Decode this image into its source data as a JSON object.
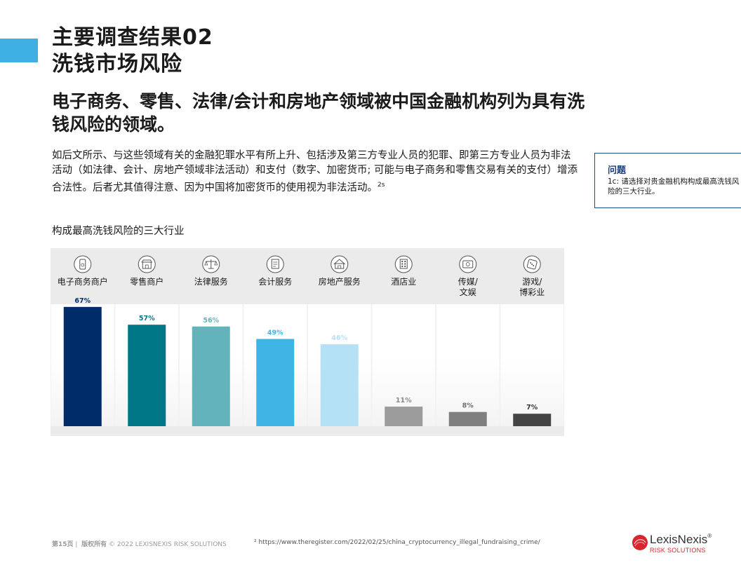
{
  "header": {
    "title_line1": "主要调查结果02",
    "title_line2": "洗钱市场风险",
    "headline": "电子商务、零售、法律/会计和房地产领域被中国金融机构列为具有洗钱风险的领域。"
  },
  "body": {
    "paragraph": "如后文所示、与这些领域有关的金融犯罪水平有所上升、包括涉及第三方专业人员的犯罪、即第三方专业人员为非法活动（如法律、会计、房地产领域非法活动）和支付（数字、加密货币; 可能与电子商务和零售交易有关的支付）增添合法性。后者尤其值得注意、因为中国将加密货币的使用视为非法活动。",
    "footnote_ref": "2s"
  },
  "question": {
    "title": "问题",
    "text": "1c: 请选择对贵金融机构构成最高洗钱风险的三大行业。"
  },
  "chart_data": {
    "type": "bar",
    "title": "构成最高洗钱风险的三大行业",
    "categories": [
      "电子商务商户",
      "零售商户",
      "法律服务",
      "会计服务",
      "房地产服务",
      "酒店业",
      "传媒/\n文娱",
      "游戏/\n博彩业"
    ],
    "values": [
      67,
      57,
      56,
      49,
      46,
      11,
      8,
      7
    ],
    "value_labels": [
      "67%",
      "57%",
      "56%",
      "49%",
      "46%",
      "11%",
      "8%",
      "7%"
    ],
    "bar_colors": [
      "#002d6a",
      "#007787",
      "#63b4ba",
      "#3eb5e5",
      "#b5e1f5",
      "#9c9c9c",
      "#7f7f7f",
      "#444444"
    ],
    "label_colors": [
      "#002d6a",
      "#007787",
      "#63b4ba",
      "#3eb5e5",
      "#b5e1f5",
      "#8a8a8a",
      "#707070",
      "#333333"
    ],
    "icons": [
      "mobile-shop-icon",
      "storefront-icon",
      "scales-icon",
      "ledger-icon",
      "house-icon",
      "hotel-icon",
      "media-icon",
      "dice-icon"
    ],
    "ylim": [
      0,
      100
    ],
    "xlabel": "",
    "ylabel": ""
  },
  "footer": {
    "page": "第15页",
    "copyright_label": "版权所有",
    "copyright": "© 2022 LEXISNEXIS RISK SOLUTIONS",
    "footnote": "² https://www.theregister.com/2022/02/25/china_cryptocurrency_illegal_fundraising_crime/",
    "logo_name": "LexisNexis",
    "logo_sub": "RISK SOLUTIONS",
    "logo_reg": "®"
  }
}
